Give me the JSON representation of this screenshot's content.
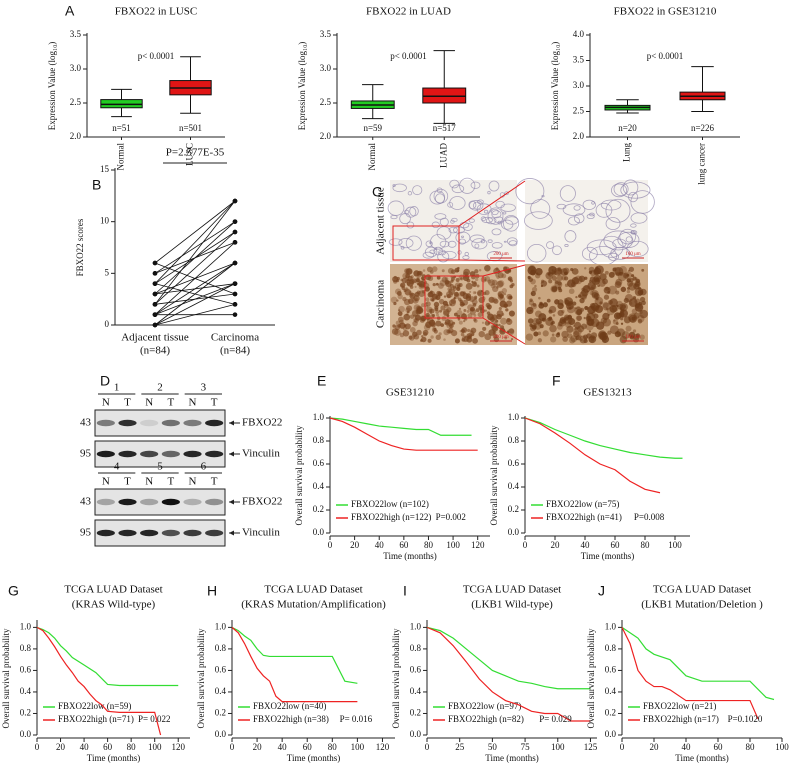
{
  "chart_data": [
    {
      "type": "box",
      "panel": "A",
      "title": "FBXO22 in LUSC",
      "ylabel": "Expression Value (log₁₀)",
      "categories": [
        "Normal",
        "LUSC"
      ],
      "boxes": [
        {
          "min": 2.3,
          "q1": 2.43,
          "median": 2.48,
          "q3": 2.55,
          "max": 2.7
        },
        {
          "min": 2.35,
          "q1": 2.62,
          "median": 2.72,
          "q3": 2.83,
          "max": 3.18
        }
      ],
      "n_labels": [
        "n=51",
        "n=501"
      ],
      "annotation": "p< 0.0001",
      "colors": [
        "#22cc22",
        "#e01515"
      ],
      "ylim": [
        2.0,
        3.5
      ],
      "yticks": [
        {
          "value": 2,
          "label": "2.0"
        },
        {
          "value": 2.5,
          "label": "2.5"
        },
        {
          "value": 3,
          "label": "3.0"
        },
        {
          "value": 3.5,
          "label": "3.5"
        }
      ]
    },
    {
      "type": "box",
      "title": "FBXO22 in LUAD",
      "ylabel": "Expression Value (log₁₀)",
      "categories": [
        "Normal",
        "LUAD"
      ],
      "boxes": [
        {
          "min": 2.27,
          "q1": 2.42,
          "median": 2.47,
          "q3": 2.53,
          "max": 2.77
        },
        {
          "min": 2.2,
          "q1": 2.5,
          "median": 2.6,
          "q3": 2.72,
          "max": 3.27
        }
      ],
      "n_labels": [
        "n=59",
        "n=517"
      ],
      "annotation": "p< 0.0001",
      "colors": [
        "#22cc22",
        "#e01515"
      ],
      "ylim": [
        2.0,
        3.5
      ],
      "yticks": [
        {
          "value": 2,
          "label": "2.0"
        },
        {
          "value": 2.5,
          "label": "2.5"
        },
        {
          "value": 3,
          "label": "3.0"
        },
        {
          "value": 3.5,
          "label": "3.5"
        }
      ]
    },
    {
      "type": "box",
      "title": "FBXO22 in GSE31210",
      "ylabel": "Expression Value (log₁₀)",
      "categories": [
        "Lung",
        "lung cancer"
      ],
      "boxes": [
        {
          "min": 2.47,
          "q1": 2.53,
          "median": 2.58,
          "q3": 2.62,
          "max": 2.73
        },
        {
          "min": 2.5,
          "q1": 2.73,
          "median": 2.8,
          "q3": 2.88,
          "max": 3.38
        }
      ],
      "n_labels": [
        "n=20",
        "n=226"
      ],
      "annotation": "p< 0.0001",
      "colors": [
        "#22cc22",
        "#e01515"
      ],
      "ylim": [
        2.0,
        4.0
      ],
      "yticks": [
        {
          "value": 2,
          "label": "2.0"
        },
        {
          "value": 2.5,
          "label": "2.5"
        },
        {
          "value": 3,
          "label": "3.0"
        },
        {
          "value": 3.5,
          "label": "3.5"
        },
        {
          "value": 4,
          "label": "4.0"
        }
      ]
    },
    {
      "type": "paired",
      "panel": "B",
      "title": "P=2.577E-35",
      "ylabel": "FBXO22 scores",
      "categories": [
        "Adjacent tissue",
        "Carcinoma"
      ],
      "n_labels": [
        "(n=84)",
        "(n=84)"
      ],
      "pairs": [
        [
          0,
          2
        ],
        [
          0,
          4
        ],
        [
          0,
          6
        ],
        [
          1,
          1
        ],
        [
          1,
          6
        ],
        [
          1,
          8
        ],
        [
          1,
          4
        ],
        [
          2,
          3
        ],
        [
          2,
          9
        ],
        [
          2,
          12
        ],
        [
          3,
          4
        ],
        [
          3,
          10
        ],
        [
          3,
          6
        ],
        [
          4,
          12
        ],
        [
          4,
          9
        ],
        [
          4,
          2
        ],
        [
          5,
          8
        ],
        [
          5,
          10
        ],
        [
          6,
          12
        ],
        [
          6,
          3
        ]
      ],
      "color": "#111111",
      "ylim": [
        0,
        15
      ],
      "yticks": [
        0,
        5,
        10,
        15
      ]
    },
    {
      "type": "line",
      "panel": "E",
      "title": "GSE31210",
      "xlabel": "Time (months)",
      "ylabel": "Overall survival probability",
      "annotation": "P=0.002",
      "xlim": [
        0,
        130
      ],
      "xticks": [
        0,
        20,
        40,
        60,
        80,
        100,
        120
      ],
      "ylim": [
        0,
        1.0
      ],
      "yticks": [
        {
          "value": 0,
          "label": "0.0"
        },
        {
          "value": 0.2,
          "label": "0.2"
        },
        {
          "value": 0.4,
          "label": "0.4"
        },
        {
          "value": 0.6,
          "label": "0.6"
        },
        {
          "value": 0.8,
          "label": "0.8"
        },
        {
          "value": 1,
          "label": "1.0"
        }
      ],
      "series": [
        {
          "name": "FBXO22low (n=102)",
          "color": "#33dd33",
          "x": [
            0,
            10,
            20,
            30,
            40,
            50,
            60,
            70,
            80,
            90,
            100,
            110,
            115
          ],
          "values": [
            1,
            0.99,
            0.97,
            0.95,
            0.93,
            0.92,
            0.91,
            0.9,
            0.9,
            0.85,
            0.85,
            0.85,
            0.85
          ]
        },
        {
          "name": "FBXO22high (n=122)",
          "color": "#ee2222",
          "x": [
            0,
            10,
            20,
            30,
            40,
            50,
            60,
            70,
            80,
            90,
            100,
            110,
            120
          ],
          "values": [
            1,
            0.97,
            0.92,
            0.86,
            0.8,
            0.76,
            0.73,
            0.72,
            0.72,
            0.72,
            0.72,
            0.72,
            0.72
          ]
        }
      ]
    },
    {
      "type": "line",
      "panel": "F",
      "title": "GES13213",
      "xlabel": "Time (months)",
      "ylabel": "Overall survival probability",
      "annotation": "P=0.008",
      "xlim": [
        0,
        110
      ],
      "xticks": [
        0,
        20,
        40,
        60,
        80,
        100
      ],
      "ylim": [
        0,
        1.0
      ],
      "yticks": [
        {
          "value": 0,
          "label": "0.0"
        },
        {
          "value": 0.2,
          "label": "0.2"
        },
        {
          "value": 0.4,
          "label": "0.4"
        },
        {
          "value": 0.6,
          "label": "0.6"
        },
        {
          "value": 0.8,
          "label": "0.8"
        },
        {
          "value": 1,
          "label": "1.0"
        }
      ],
      "series": [
        {
          "name": "FBXO22low (n=75)",
          "color": "#33dd33",
          "x": [
            0,
            10,
            20,
            30,
            40,
            50,
            60,
            70,
            80,
            90,
            100,
            105
          ],
          "values": [
            1,
            0.96,
            0.9,
            0.85,
            0.8,
            0.76,
            0.73,
            0.7,
            0.68,
            0.66,
            0.65,
            0.65
          ]
        },
        {
          "name": "FBXO22high (n=41)",
          "color": "#ee2222",
          "x": [
            0,
            10,
            20,
            30,
            40,
            50,
            60,
            70,
            80,
            90
          ],
          "values": [
            1,
            0.95,
            0.87,
            0.78,
            0.68,
            0.6,
            0.55,
            0.45,
            0.38,
            0.35
          ]
        }
      ]
    },
    {
      "type": "line",
      "panel": "G",
      "title": "TCGA LUAD Dataset",
      "subtitle": "(KRAS Wild-type)",
      "xlabel": "Time (months)",
      "ylabel": "Overall survival probability",
      "annotation": "P= 0.022",
      "xlim": [
        0,
        130
      ],
      "xticks": [
        0,
        20,
        40,
        60,
        80,
        100,
        120
      ],
      "ylim": [
        0,
        1.05
      ],
      "yticks": [
        {
          "value": 0,
          "label": "0.0"
        },
        {
          "value": 0.2,
          "label": "0.2"
        },
        {
          "value": 0.4,
          "label": "0.4"
        },
        {
          "value": 0.6,
          "label": "0.6"
        },
        {
          "value": 0.8,
          "label": "0.8"
        },
        {
          "value": 1,
          "label": "1.0"
        }
      ],
      "series": [
        {
          "name": "FBXO22low (n=59)",
          "color": "#33dd33",
          "x": [
            0,
            5,
            10,
            15,
            20,
            25,
            30,
            40,
            50,
            60,
            70,
            80,
            90,
            100,
            110,
            120
          ],
          "values": [
            1,
            0.98,
            0.95,
            0.9,
            0.83,
            0.78,
            0.72,
            0.65,
            0.58,
            0.47,
            0.46,
            0.46,
            0.46,
            0.46,
            0.46,
            0.46
          ]
        },
        {
          "name": "FBXO22high (n=71)",
          "color": "#ee2222",
          "x": [
            0,
            5,
            10,
            15,
            20,
            25,
            30,
            35,
            40,
            45,
            50,
            55,
            60,
            70,
            80,
            90,
            100,
            105
          ],
          "values": [
            1,
            0.97,
            0.9,
            0.82,
            0.73,
            0.65,
            0.58,
            0.5,
            0.45,
            0.38,
            0.32,
            0.28,
            0.22,
            0.21,
            0.21,
            0.21,
            0.21,
            0
          ]
        }
      ]
    },
    {
      "type": "line",
      "panel": "H",
      "title": "TCGA LUAD Dataset",
      "subtitle": "(KRAS Mutation/Amplification)",
      "xlabel": "Time (months)",
      "ylabel": "Overall survival probability",
      "annotation": "P= 0.016",
      "xlim": [
        0,
        130
      ],
      "xticks": [
        0,
        20,
        40,
        60,
        80,
        100,
        120
      ],
      "ylim": [
        0,
        1.05
      ],
      "yticks": [
        {
          "value": 0,
          "label": "0.0"
        },
        {
          "value": 0.2,
          "label": "0.2"
        },
        {
          "value": 0.4,
          "label": "0.4"
        },
        {
          "value": 0.6,
          "label": "0.6"
        },
        {
          "value": 0.8,
          "label": "0.8"
        },
        {
          "value": 1,
          "label": "1.0"
        }
      ],
      "series": [
        {
          "name": "FBXO22low (n=40)",
          "color": "#33dd33",
          "x": [
            0,
            5,
            10,
            15,
            20,
            25,
            30,
            40,
            50,
            60,
            70,
            80,
            90,
            100
          ],
          "values": [
            1,
            0.97,
            0.92,
            0.88,
            0.8,
            0.74,
            0.73,
            0.73,
            0.73,
            0.73,
            0.73,
            0.73,
            0.5,
            0.48
          ]
        },
        {
          "name": "FBXO22high (n=38)",
          "color": "#ee2222",
          "x": [
            0,
            5,
            10,
            15,
            20,
            25,
            30,
            35,
            40,
            50,
            60,
            70,
            80,
            90,
            100
          ],
          "values": [
            1,
            0.95,
            0.85,
            0.73,
            0.62,
            0.55,
            0.5,
            0.36,
            0.31,
            0.31,
            0.31,
            0.31,
            0.31,
            0.31,
            0.31
          ]
        }
      ]
    },
    {
      "type": "line",
      "panel": "I",
      "title": "TCGA LUAD Dataset",
      "subtitle": "(LKB1 Wild-type)",
      "xlabel": "Time (months)",
      "ylabel": "Overall survival probability",
      "annotation": "P= 0.029",
      "xlim": [
        0,
        130
      ],
      "xticks": [
        0,
        25,
        50,
        75,
        100,
        125
      ],
      "ylim": [
        0,
        1.05
      ],
      "yticks": [
        {
          "value": 0,
          "label": "0.0"
        },
        {
          "value": 0.2,
          "label": "0.2"
        },
        {
          "value": 0.4,
          "label": "0.4"
        },
        {
          "value": 0.6,
          "label": "0.6"
        },
        {
          "value": 0.8,
          "label": "0.8"
        },
        {
          "value": 1,
          "label": "1.0"
        }
      ],
      "series": [
        {
          "name": "FBXO22low (n=97)",
          "color": "#33dd33",
          "x": [
            0,
            10,
            20,
            30,
            40,
            50,
            60,
            70,
            80,
            90,
            100,
            110,
            125
          ],
          "values": [
            1,
            0.97,
            0.9,
            0.8,
            0.7,
            0.6,
            0.55,
            0.5,
            0.48,
            0.45,
            0.43,
            0.43,
            0.43
          ]
        },
        {
          "name": "FBXO22high (n=82)",
          "color": "#ee2222",
          "x": [
            0,
            10,
            20,
            30,
            40,
            50,
            60,
            70,
            80,
            90,
            100,
            110,
            125
          ],
          "values": [
            1,
            0.95,
            0.83,
            0.68,
            0.52,
            0.4,
            0.32,
            0.28,
            0.22,
            0.2,
            0.2,
            0.13,
            0.13
          ]
        }
      ]
    },
    {
      "type": "line",
      "panel": "J",
      "title": "TCGA LUAD Dataset",
      "subtitle": "(LKB1 Mutation/Deletion )",
      "xlabel": "Time (months)",
      "ylabel": "Overall survival probability",
      "annotation": "P=0.1020",
      "xlim": [
        0,
        100
      ],
      "xticks": [
        0,
        20,
        40,
        60,
        80,
        100
      ],
      "ylim": [
        0,
        1.05
      ],
      "yticks": [
        {
          "value": 0,
          "label": "0.0"
        },
        {
          "value": 0.2,
          "label": "0.2"
        },
        {
          "value": 0.4,
          "label": "0.4"
        },
        {
          "value": 0.6,
          "label": "0.6"
        },
        {
          "value": 0.8,
          "label": "0.8"
        },
        {
          "value": 1,
          "label": "1.0"
        }
      ],
      "series": [
        {
          "name": "FBXO22low (n=21)",
          "color": "#33dd33",
          "x": [
            0,
            5,
            10,
            15,
            20,
            30,
            40,
            50,
            60,
            70,
            80,
            90,
            95
          ],
          "values": [
            1,
            0.95,
            0.9,
            0.8,
            0.75,
            0.7,
            0.55,
            0.5,
            0.5,
            0.5,
            0.5,
            0.35,
            0.33
          ]
        },
        {
          "name": "FBXO22high (n=17)",
          "color": "#ee2222",
          "x": [
            0,
            5,
            10,
            15,
            20,
            25,
            30,
            40,
            50,
            60,
            70,
            80,
            85
          ],
          "values": [
            1,
            0.85,
            0.6,
            0.5,
            0.45,
            0.45,
            0.42,
            0.32,
            0.32,
            0.32,
            0.32,
            0.32,
            0.15
          ]
        }
      ]
    }
  ],
  "ihc": {
    "panel": "C",
    "rows": [
      "Adjacent tissue",
      "Carcinoma"
    ],
    "scale_bars": [
      "200 μm",
      "100 μm"
    ]
  },
  "blot": {
    "panel": "D",
    "groups": [
      {
        "samples": [
          "1",
          "2",
          "3"
        ],
        "lanes": [
          "N",
          "T",
          "N",
          "T",
          "N",
          "T"
        ],
        "rows": [
          {
            "marker": "43",
            "label": "FBXO22"
          },
          {
            "marker": "95",
            "label": "Vinculin"
          }
        ]
      },
      {
        "samples": [
          "4",
          "5",
          "6"
        ],
        "lanes": [
          "N",
          "T",
          "N",
          "T",
          "N",
          "T"
        ],
        "rows": [
          {
            "marker": "43",
            "label": "FBXO22"
          },
          {
            "marker": "95",
            "label": "Vinculin"
          }
        ]
      }
    ]
  }
}
